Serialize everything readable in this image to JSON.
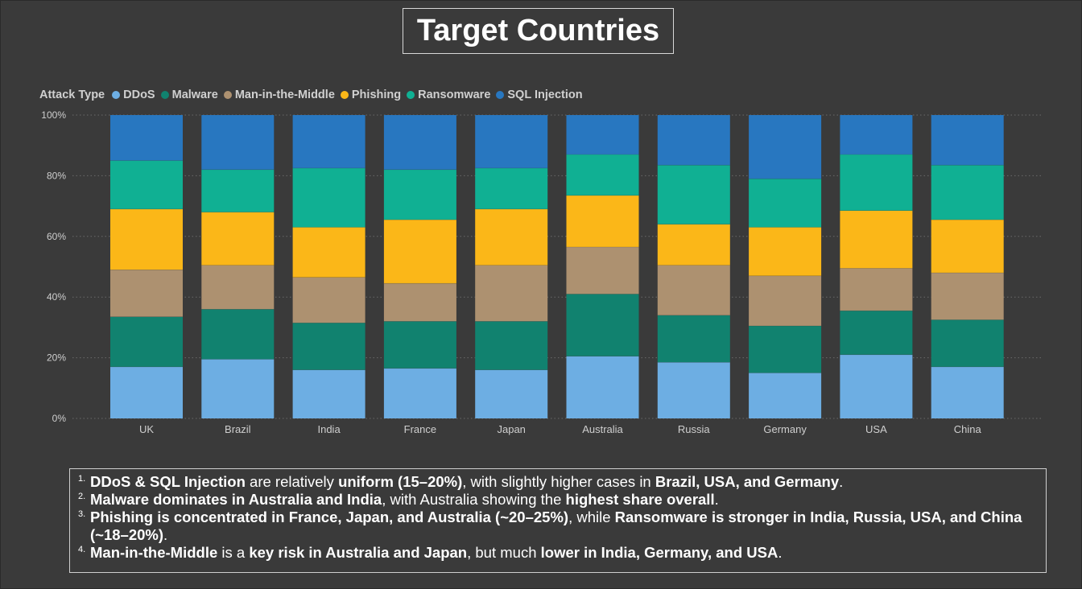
{
  "title": "Target Countries",
  "legend": {
    "title": "Attack Type",
    "items": [
      {
        "label": "DDoS",
        "color": "#6daee3"
      },
      {
        "label": "Malware",
        "color": "#11826f"
      },
      {
        "label": "Man-in-the-Middle",
        "color": "#ad9170"
      },
      {
        "label": "Phishing",
        "color": "#fbb718"
      },
      {
        "label": "Ransomware",
        "color": "#10b093"
      },
      {
        "label": "SQL Injection",
        "color": "#2877c0"
      }
    ]
  },
  "chart_data": {
    "type": "bar",
    "stacked": "percent",
    "categories": [
      "UK",
      "Brazil",
      "India",
      "France",
      "Japan",
      "Australia",
      "Russia",
      "Germany",
      "USA",
      "China"
    ],
    "y_tick_labels": [
      "0%",
      "20%",
      "40%",
      "60%",
      "80%",
      "100%"
    ],
    "ylim": [
      0,
      100
    ],
    "grid": "horizontal-dotted",
    "legend_position": "top-left",
    "series": [
      {
        "name": "DDoS",
        "color": "#6daee3",
        "values": [
          17,
          19.5,
          16,
          16.5,
          16,
          20.5,
          18.5,
          15,
          21,
          17
        ]
      },
      {
        "name": "Malware",
        "color": "#11826f",
        "values": [
          16.5,
          16.5,
          15.5,
          15.5,
          16,
          20.5,
          15.5,
          15.5,
          14.5,
          15.5
        ]
      },
      {
        "name": "Man-in-the-Middle",
        "color": "#ad9170",
        "values": [
          15.5,
          14.5,
          15,
          12.5,
          18.5,
          15.5,
          16.5,
          16.5,
          14,
          15.5
        ]
      },
      {
        "name": "Phishing",
        "color": "#fbb718",
        "values": [
          20,
          17.5,
          16.5,
          21,
          18.5,
          17,
          13.5,
          16,
          19,
          17.5
        ]
      },
      {
        "name": "Ransomware",
        "color": "#10b093",
        "values": [
          16,
          14,
          19.5,
          16.5,
          13.5,
          13.5,
          19.5,
          16,
          18.5,
          18
        ]
      },
      {
        "name": "SQL Injection",
        "color": "#2877c0",
        "values": [
          15,
          18,
          17.5,
          18,
          17.5,
          13,
          16.5,
          21,
          13,
          16.5
        ]
      }
    ]
  },
  "notes": [
    {
      "num": "1.",
      "parts": [
        {
          "t": "DDoS & SQL Injection",
          "b": true
        },
        {
          "t": " are relatively ",
          "b": false
        },
        {
          "t": "uniform (15–20%)",
          "b": true
        },
        {
          "t": ", with slightly higher cases in ",
          "b": false
        },
        {
          "t": "Brazil, USA, and Germany",
          "b": true
        },
        {
          "t": ".",
          "b": false
        }
      ]
    },
    {
      "num": "2.",
      "parts": [
        {
          "t": "Malware dominates in Australia and India",
          "b": true
        },
        {
          "t": ", with Australia showing the ",
          "b": false
        },
        {
          "t": "highest share overall",
          "b": true
        },
        {
          "t": ".",
          "b": false
        }
      ]
    },
    {
      "num": "3.",
      "parts": [
        {
          "t": "Phishing is concentrated in France, Japan, and Australia (~20–25%)",
          "b": true
        },
        {
          "t": ", while ",
          "b": false
        },
        {
          "t": "Ransomware is stronger in India, Russia, USA, and China (~18–20%)",
          "b": true
        },
        {
          "t": ".",
          "b": false
        }
      ]
    },
    {
      "num": "4.",
      "parts": [
        {
          "t": "Man-in-the-Middle",
          "b": true
        },
        {
          "t": " is a ",
          "b": false
        },
        {
          "t": "key risk in Australia and Japan",
          "b": true
        },
        {
          "t": ", but much ",
          "b": false
        },
        {
          "t": "lower in India, Germany, and USA",
          "b": true
        },
        {
          "t": ".",
          "b": false
        }
      ]
    }
  ]
}
